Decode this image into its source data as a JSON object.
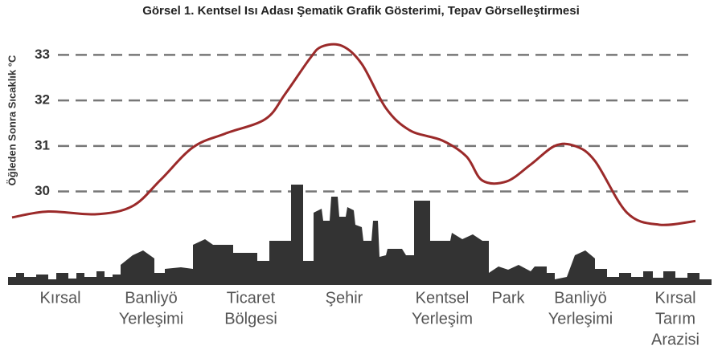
{
  "chart_data": {
    "type": "line",
    "title": "Görsel 1. Kentsel Isı Adası Şematik Grafik Gösterimi, Tepav Görselleştirmesi",
    "ylabel": "Öğleden Sonra Sıcaklık °C",
    "categories": [
      [
        "Kırsal"
      ],
      [
        "Banliyö",
        "Yerleşimi"
      ],
      [
        "Ticaret",
        "Bölgesi"
      ],
      [
        "Şehir"
      ],
      [
        "Kentsel",
        "Yerleşim"
      ],
      [
        "Park"
      ],
      [
        "Banliyö",
        "Yerleşimi"
      ],
      [
        "Kırsal",
        "Tarım",
        "Arazisi"
      ]
    ],
    "x": [
      15,
      60,
      120,
      165,
      200,
      240,
      280,
      330,
      355,
      385,
      400,
      425,
      450,
      480,
      510,
      550,
      580,
      600,
      630,
      660,
      690,
      715,
      740,
      780,
      820,
      865
    ],
    "series": [
      {
        "color": "#9b2a2a",
        "values": [
          29.43,
          29.56,
          29.5,
          29.68,
          30.26,
          30.97,
          31.27,
          31.59,
          32.15,
          32.91,
          33.18,
          33.2,
          32.8,
          31.83,
          31.34,
          31.12,
          30.77,
          30.24,
          30.22,
          30.59,
          31.0,
          31.0,
          30.67,
          29.53,
          29.27,
          29.35
        ]
      }
    ],
    "xlim": [
      0,
      898
    ],
    "ylim": [
      28,
      33.5
    ],
    "yticks": [
      30,
      31,
      32,
      33
    ],
    "grid": true
  }
}
